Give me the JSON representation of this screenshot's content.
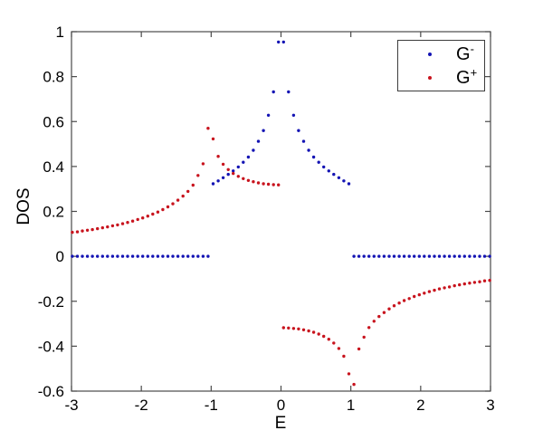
{
  "figure": {
    "background": "#ffffff",
    "frame_color": "#4a4a4a",
    "text_color": "#000000"
  },
  "chart_data": {
    "type": "scatter",
    "title": "",
    "xlabel": "E",
    "ylabel": "DOS",
    "xlim": [
      -3,
      3
    ],
    "ylim": [
      -0.6,
      1
    ],
    "grid": false,
    "legend_position": "top-right",
    "x_ticks": [
      -3,
      -2,
      -1,
      0,
      1,
      2,
      3
    ],
    "x_tick_labels": [
      "-3",
      "-2",
      "-1",
      "0",
      "1",
      "2",
      "3"
    ],
    "y_ticks": [
      1,
      0.8,
      0.6,
      0.4,
      0.2,
      0,
      -0.2,
      -0.4,
      -0.6
    ],
    "y_tick_labels": [
      "1",
      "0.8",
      "0.6",
      "0.4",
      "0.2",
      "0",
      "-0.2",
      "-0.4",
      "-0.6"
    ],
    "series": [
      {
        "name": "G-",
        "label_base": "G",
        "label_sup": "-",
        "color": "#1414b4",
        "marker": "dot",
        "points": [
          [
            -2.988,
            0
          ],
          [
            -2.916,
            0
          ],
          [
            -2.844,
            0
          ],
          [
            -2.772,
            0
          ],
          [
            -2.7,
            0
          ],
          [
            -2.628,
            0
          ],
          [
            -2.556,
            0
          ],
          [
            -2.484,
            0
          ],
          [
            -2.412,
            0
          ],
          [
            -2.34,
            0
          ],
          [
            -2.268,
            0
          ],
          [
            -2.196,
            0
          ],
          [
            -2.124,
            0
          ],
          [
            -2.052,
            0
          ],
          [
            -1.98,
            0
          ],
          [
            -1.908,
            0
          ],
          [
            -1.836,
            0
          ],
          [
            -1.764,
            0
          ],
          [
            -1.692,
            0
          ],
          [
            -1.62,
            0
          ],
          [
            -1.548,
            0
          ],
          [
            -1.476,
            0
          ],
          [
            -1.404,
            0
          ],
          [
            -1.332,
            0
          ],
          [
            -1.26,
            0
          ],
          [
            -1.188,
            0
          ],
          [
            -1.116,
            0
          ],
          [
            -1.044,
            0
          ],
          [
            -0.972,
            0.323
          ],
          [
            -0.9,
            0.336
          ],
          [
            -0.828,
            0.35
          ],
          [
            -0.756,
            0.365
          ],
          [
            -0.684,
            0.38
          ],
          [
            -0.612,
            0.398
          ],
          [
            -0.54,
            0.419
          ],
          [
            -0.468,
            0.442
          ],
          [
            -0.396,
            0.472
          ],
          [
            -0.324,
            0.512
          ],
          [
            -0.252,
            0.56
          ],
          [
            -0.18,
            0.628
          ],
          [
            -0.108,
            0.732
          ],
          [
            -0.036,
            0.954
          ],
          [
            0.036,
            0.954
          ],
          [
            0.108,
            0.732
          ],
          [
            0.18,
            0.628
          ],
          [
            0.252,
            0.56
          ],
          [
            0.324,
            0.512
          ],
          [
            0.396,
            0.472
          ],
          [
            0.468,
            0.442
          ],
          [
            0.54,
            0.419
          ],
          [
            0.612,
            0.398
          ],
          [
            0.684,
            0.38
          ],
          [
            0.756,
            0.365
          ],
          [
            0.828,
            0.35
          ],
          [
            0.9,
            0.336
          ],
          [
            0.972,
            0.323
          ],
          [
            1.044,
            0
          ],
          [
            1.116,
            0
          ],
          [
            1.188,
            0
          ],
          [
            1.26,
            0
          ],
          [
            1.332,
            0
          ],
          [
            1.404,
            0
          ],
          [
            1.476,
            0
          ],
          [
            1.548,
            0
          ],
          [
            1.62,
            0
          ],
          [
            1.692,
            0
          ],
          [
            1.764,
            0
          ],
          [
            1.836,
            0
          ],
          [
            1.908,
            0
          ],
          [
            1.98,
            0
          ],
          [
            2.052,
            0
          ],
          [
            2.124,
            0
          ],
          [
            2.196,
            0
          ],
          [
            2.268,
            0
          ],
          [
            2.34,
            0
          ],
          [
            2.412,
            0
          ],
          [
            2.484,
            0
          ],
          [
            2.556,
            0
          ],
          [
            2.628,
            0
          ],
          [
            2.7,
            0
          ],
          [
            2.772,
            0
          ],
          [
            2.844,
            0
          ],
          [
            2.916,
            0
          ],
          [
            2.988,
            0
          ]
        ]
      },
      {
        "name": "G+",
        "label_base": "G",
        "label_sup": "+",
        "color": "#c8141e",
        "marker": "dot",
        "points": [
          [
            -2.988,
            0.107
          ],
          [
            -2.916,
            0.109
          ],
          [
            -2.844,
            0.113
          ],
          [
            -2.772,
            0.116
          ],
          [
            -2.7,
            0.119
          ],
          [
            -2.628,
            0.123
          ],
          [
            -2.556,
            0.127
          ],
          [
            -2.484,
            0.131
          ],
          [
            -2.412,
            0.136
          ],
          [
            -2.34,
            0.14
          ],
          [
            -2.268,
            0.145
          ],
          [
            -2.196,
            0.151
          ],
          [
            -2.124,
            0.157
          ],
          [
            -2.052,
            0.164
          ],
          [
            -1.98,
            0.171
          ],
          [
            -1.908,
            0.179
          ],
          [
            -1.836,
            0.188
          ],
          [
            -1.764,
            0.197
          ],
          [
            -1.692,
            0.208
          ],
          [
            -1.62,
            0.22
          ],
          [
            -1.548,
            0.234
          ],
          [
            -1.476,
            0.25
          ],
          [
            -1.404,
            0.268
          ],
          [
            -1.332,
            0.289
          ],
          [
            -1.26,
            0.317
          ],
          [
            -1.188,
            0.36
          ],
          [
            -1.116,
            0.412
          ],
          [
            -1.044,
            0.57
          ],
          [
            -0.972,
            0.523
          ],
          [
            -0.9,
            0.445
          ],
          [
            -0.828,
            0.41
          ],
          [
            -0.756,
            0.386
          ],
          [
            -0.684,
            0.369
          ],
          [
            -0.612,
            0.356
          ],
          [
            -0.54,
            0.346
          ],
          [
            -0.468,
            0.338
          ],
          [
            -0.396,
            0.332
          ],
          [
            -0.324,
            0.327
          ],
          [
            -0.252,
            0.323
          ],
          [
            -0.18,
            0.321
          ],
          [
            -0.108,
            0.319
          ],
          [
            -0.036,
            0.318
          ],
          [
            0.036,
            -0.318
          ],
          [
            0.108,
            -0.319
          ],
          [
            0.18,
            -0.321
          ],
          [
            0.252,
            -0.323
          ],
          [
            0.324,
            -0.327
          ],
          [
            0.396,
            -0.332
          ],
          [
            0.468,
            -0.338
          ],
          [
            0.54,
            -0.346
          ],
          [
            0.612,
            -0.356
          ],
          [
            0.684,
            -0.369
          ],
          [
            0.756,
            -0.386
          ],
          [
            0.828,
            -0.41
          ],
          [
            0.9,
            -0.445
          ],
          [
            0.972,
            -0.523
          ],
          [
            1.044,
            -0.57
          ],
          [
            1.116,
            -0.412
          ],
          [
            1.188,
            -0.36
          ],
          [
            1.26,
            -0.317
          ],
          [
            1.332,
            -0.289
          ],
          [
            1.404,
            -0.268
          ],
          [
            1.476,
            -0.25
          ],
          [
            1.548,
            -0.234
          ],
          [
            1.62,
            -0.22
          ],
          [
            1.692,
            -0.208
          ],
          [
            1.764,
            -0.197
          ],
          [
            1.836,
            -0.188
          ],
          [
            1.908,
            -0.179
          ],
          [
            1.98,
            -0.171
          ],
          [
            2.052,
            -0.164
          ],
          [
            2.124,
            -0.157
          ],
          [
            2.196,
            -0.151
          ],
          [
            2.268,
            -0.145
          ],
          [
            2.34,
            -0.14
          ],
          [
            2.412,
            -0.136
          ],
          [
            2.484,
            -0.131
          ],
          [
            2.556,
            -0.127
          ],
          [
            2.628,
            -0.123
          ],
          [
            2.7,
            -0.119
          ],
          [
            2.772,
            -0.116
          ],
          [
            2.844,
            -0.113
          ],
          [
            2.916,
            -0.109
          ],
          [
            2.988,
            -0.107
          ]
        ]
      }
    ]
  }
}
